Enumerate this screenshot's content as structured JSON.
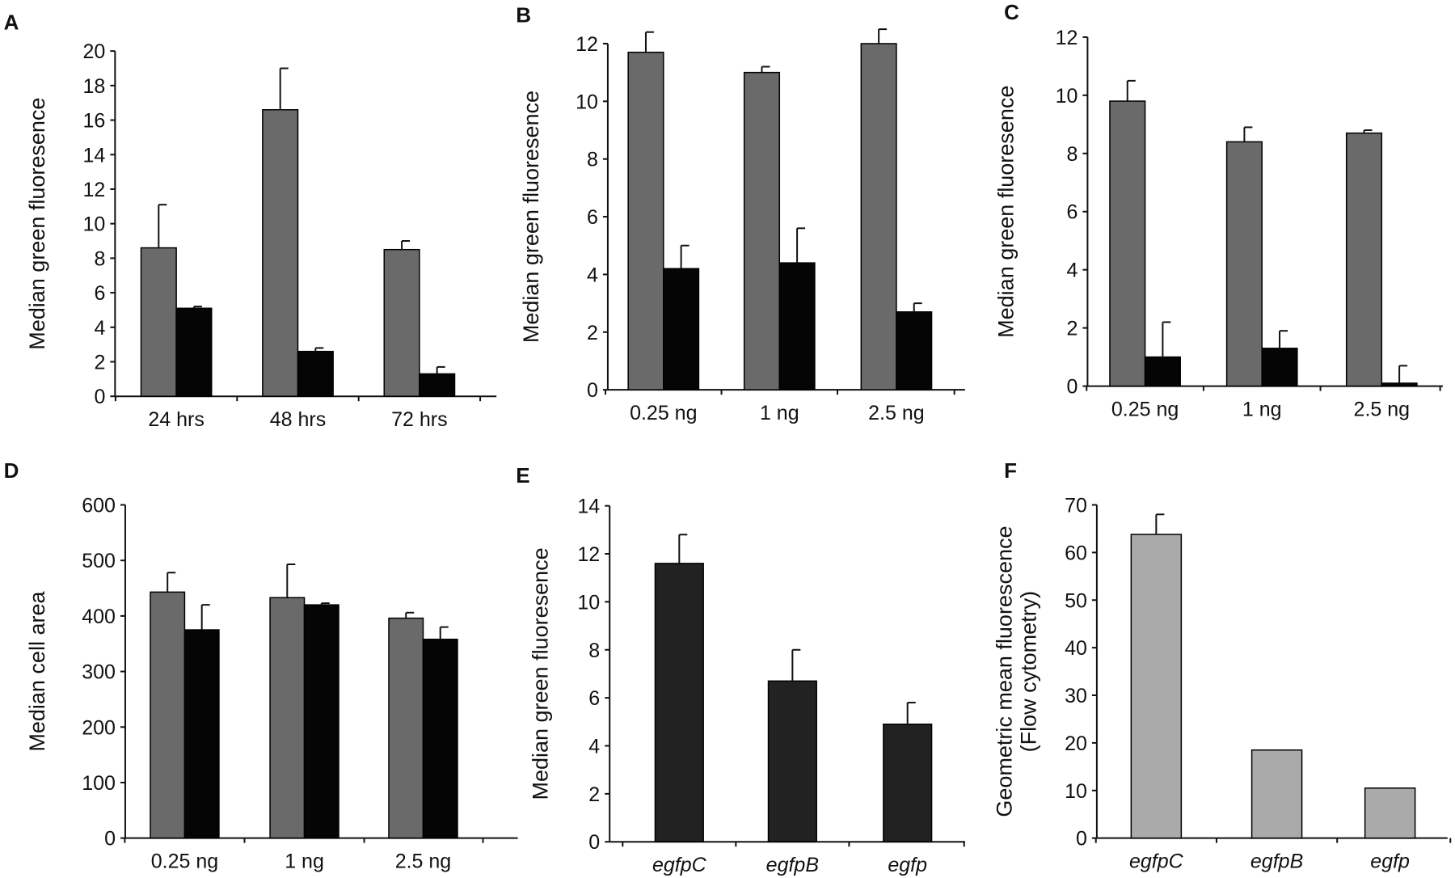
{
  "colors": {
    "gray": "#6a6a6a",
    "black": "#050505",
    "dark": "#222222",
    "light": "#aaaaaa"
  },
  "chart_data": [
    {
      "panel": "A",
      "type": "bar",
      "ylabel": "Median green fluoresence",
      "categories": [
        "24 hrs",
        "48 hrs",
        "72 hrs"
      ],
      "italic_categories": false,
      "ylim": [
        0,
        20
      ],
      "yticks": [
        0,
        2,
        4,
        6,
        8,
        10,
        12,
        14,
        16,
        18,
        20
      ],
      "series": [
        {
          "values": [
            8.6,
            16.6,
            8.5
          ],
          "errors": [
            2.5,
            2.4,
            0.5
          ],
          "color": "#6a6a6a"
        },
        {
          "values": [
            5.1,
            2.6,
            1.3
          ],
          "errors": [
            0.1,
            0.2,
            0.4
          ],
          "color": "#050505"
        }
      ]
    },
    {
      "panel": "B",
      "type": "bar",
      "ylabel": "Median green fluoresence",
      "categories": [
        "0.25 ng",
        "1 ng",
        "2.5 ng"
      ],
      "italic_categories": false,
      "ylim": [
        0,
        12
      ],
      "yticks": [
        0,
        2,
        4,
        6,
        8,
        10,
        12
      ],
      "series": [
        {
          "values": [
            11.7,
            11.0,
            12.0
          ],
          "errors": [
            0.7,
            0.2,
            0.5
          ],
          "color": "#6a6a6a"
        },
        {
          "values": [
            4.2,
            4.4,
            2.7
          ],
          "errors": [
            0.8,
            1.2,
            0.3
          ],
          "color": "#050505"
        }
      ]
    },
    {
      "panel": "C",
      "type": "bar",
      "ylabel": "Median green fluoresence",
      "categories": [
        "0.25 ng",
        "1 ng",
        "2.5 ng"
      ],
      "italic_categories": false,
      "ylim": [
        0,
        12
      ],
      "yticks": [
        0,
        2,
        4,
        6,
        8,
        10,
        12
      ],
      "series": [
        {
          "values": [
            9.8,
            8.4,
            8.7
          ],
          "errors": [
            0.7,
            0.5,
            0.1
          ],
          "color": "#6a6a6a"
        },
        {
          "values": [
            1.0,
            1.3,
            0.1
          ],
          "errors": [
            1.2,
            0.6,
            0.6
          ],
          "color": "#050505"
        }
      ]
    },
    {
      "panel": "D",
      "type": "bar",
      "ylabel": "Median cell area",
      "categories": [
        "0.25 ng",
        "1 ng",
        "2.5 ng"
      ],
      "italic_categories": false,
      "ylim": [
        0,
        600
      ],
      "yticks": [
        0,
        100,
        200,
        300,
        400,
        500,
        600
      ],
      "series": [
        {
          "values": [
            443,
            433,
            396
          ],
          "errors": [
            35,
            60,
            10
          ],
          "color": "#6a6a6a"
        },
        {
          "values": [
            375,
            420,
            358
          ],
          "errors": [
            45,
            3,
            22
          ],
          "color": "#050505"
        }
      ]
    },
    {
      "panel": "E",
      "type": "bar",
      "ylabel": "Median green fluoresence",
      "categories": [
        "egfpC",
        "egfpB",
        "egfp"
      ],
      "italic_categories": true,
      "ylim": [
        0,
        14
      ],
      "yticks": [
        0,
        2,
        4,
        6,
        8,
        10,
        12,
        14
      ],
      "series": [
        {
          "values": [
            11.6,
            6.7,
            4.9
          ],
          "errors": [
            1.2,
            1.3,
            0.9
          ],
          "color": "#222222"
        }
      ]
    },
    {
      "panel": "F",
      "type": "bar",
      "ylabel": "Geometric mean fluorescence (Flow cytometry)",
      "ylabel_lines": [
        "Geometric mean fluorescence",
        "(Flow cytometry)"
      ],
      "categories": [
        "egfpC",
        "egfpB",
        "egfp"
      ],
      "italic_categories": true,
      "ylim": [
        0,
        70
      ],
      "yticks": [
        0,
        10,
        20,
        30,
        40,
        50,
        60,
        70
      ],
      "series": [
        {
          "values": [
            63.8,
            18.5,
            10.5
          ],
          "errors": [
            4.2,
            0,
            0
          ],
          "color": "#aaaaaa"
        }
      ]
    }
  ]
}
